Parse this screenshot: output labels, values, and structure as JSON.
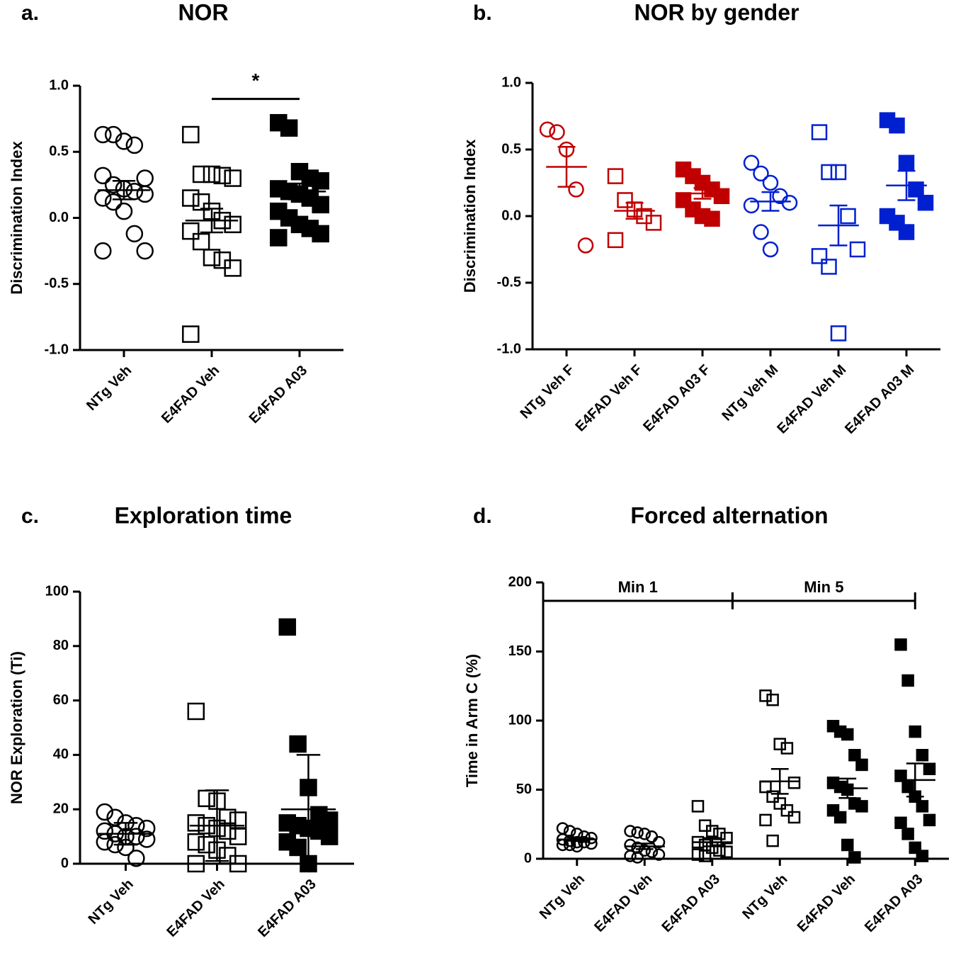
{
  "chart_data": [
    {
      "type": "scatter",
      "panel": "a.",
      "title": "NOR",
      "ylabel": "Discrimination Index",
      "categories": [
        "NTg Veh",
        "E4FAD Veh",
        "E4FAD A03"
      ],
      "markers": [
        {
          "shape": "circle",
          "filled": false,
          "color": "#000000"
        },
        {
          "shape": "square",
          "filled": false,
          "color": "#000000"
        },
        {
          "shape": "square",
          "filled": true,
          "color": "#000000"
        }
      ],
      "points": [
        [
          0.63,
          0.63,
          0.58,
          0.55,
          0.3,
          0.32,
          0.25,
          0.22,
          0.2,
          0.18,
          0.15,
          0.12,
          0.05,
          -0.12,
          -0.25,
          -0.25
        ],
        [
          0.63,
          0.33,
          0.33,
          0.32,
          0.3,
          0.15,
          0.12,
          0.05,
          -0.02,
          -0.05,
          -0.1,
          -0.18,
          -0.3,
          -0.32,
          -0.38,
          -0.88
        ],
        [
          0.72,
          0.68,
          0.35,
          0.3,
          0.28,
          0.22,
          0.2,
          0.18,
          0.15,
          0.1,
          0.05,
          0.0,
          -0.05,
          -0.08,
          -0.12,
          -0.15
        ]
      ],
      "means": [
        0.21,
        -0.02,
        0.2
      ],
      "errors": [
        0.07,
        0.09,
        0.06
      ],
      "significance": [
        {
          "label": "*",
          "between": [
            1,
            2
          ],
          "y": 0.9
        }
      ],
      "ylim": [
        -1,
        1
      ],
      "yticks": [
        {
          "value": -1,
          "label": "-1.0"
        },
        -0.5,
        {
          "value": 0,
          "label": "0.0"
        },
        0.5,
        {
          "value": 1,
          "label": "1.0"
        }
      ]
    },
    {
      "type": "scatter",
      "panel": "b.",
      "title": "NOR by gender",
      "ylabel": "Discrimination Index",
      "categories": [
        "NTg Veh F",
        "E4FAD Veh F",
        "E4FAD A03 F",
        "NTg Veh M",
        "E4FAD Veh M",
        "E4FAD A03 M"
      ],
      "markers": [
        {
          "shape": "circle",
          "filled": false,
          "color": "#c00000"
        },
        {
          "shape": "square",
          "filled": false,
          "color": "#c00000"
        },
        {
          "shape": "square",
          "filled": true,
          "color": "#c00000"
        },
        {
          "shape": "circle",
          "filled": false,
          "color": "#0020d0"
        },
        {
          "shape": "square",
          "filled": false,
          "color": "#0020d0"
        },
        {
          "shape": "square",
          "filled": true,
          "color": "#0020d0"
        }
      ],
      "points": [
        [
          0.65,
          0.63,
          0.5,
          0.2,
          -0.22
        ],
        [
          0.3,
          0.12,
          0.05,
          0.0,
          -0.05,
          -0.18
        ],
        [
          0.35,
          0.3,
          0.25,
          0.2,
          0.15,
          0.12,
          0.05,
          0.0,
          -0.02
        ],
        [
          0.4,
          0.32,
          0.25,
          0.15,
          0.1,
          0.08,
          -0.12,
          -0.25
        ],
        [
          0.63,
          0.33,
          0.33,
          0.0,
          -0.25,
          -0.3,
          -0.38,
          -0.88
        ],
        [
          0.72,
          0.68,
          0.4,
          0.2,
          0.1,
          0.0,
          -0.05,
          -0.12
        ]
      ],
      "means": [
        0.37,
        0.04,
        0.17,
        0.11,
        -0.07,
        0.23
      ],
      "errors": [
        0.15,
        0.06,
        0.04,
        0.07,
        0.15,
        0.11
      ],
      "ylim": [
        -1,
        1
      ],
      "yticks": [
        {
          "value": -1,
          "label": "-1.0"
        },
        -0.5,
        {
          "value": 0,
          "label": "0.0"
        },
        0.5,
        {
          "value": 1,
          "label": "1.0"
        }
      ]
    },
    {
      "type": "scatter",
      "panel": "c.",
      "title": "Exploration time",
      "ylabel": "NOR Exploration (Ti)",
      "categories": [
        "NTg Veh",
        "E4FAD Veh",
        "E4FAD A03"
      ],
      "markers": [
        {
          "shape": "circle",
          "filled": false,
          "color": "#000000"
        },
        {
          "shape": "square",
          "filled": false,
          "color": "#000000"
        },
        {
          "shape": "square",
          "filled": true,
          "color": "#000000"
        }
      ],
      "points": [
        [
          19,
          17,
          15,
          14,
          13,
          12,
          11,
          10,
          10,
          9,
          8,
          7,
          6,
          2
        ],
        [
          56,
          24,
          23,
          17,
          16,
          15,
          14,
          13,
          12,
          10,
          8,
          7,
          5,
          3,
          0,
          0
        ],
        [
          87,
          44,
          28,
          18,
          16,
          15,
          14,
          13,
          12,
          10,
          8,
          6,
          0
        ]
      ],
      "means": [
        11,
        14,
        20
      ],
      "errors": [
        4,
        13,
        20
      ],
      "ylim": [
        0,
        100
      ],
      "yticks": [
        0,
        20,
        40,
        60,
        80,
        100
      ]
    },
    {
      "type": "scatter",
      "panel": "d.",
      "title": "Forced alternation",
      "ylabel": "Time in Arm C (%)",
      "categories": [
        "NTg Veh",
        "E4FAD Veh",
        "E4FAD A03",
        "NTg Veh",
        "E4FAD Veh",
        "E4FAD A03"
      ],
      "markers": [
        {
          "shape": "circle",
          "filled": false,
          "color": "#000000"
        },
        {
          "shape": "circle",
          "filled": false,
          "color": "#000000"
        },
        {
          "shape": "square",
          "filled": false,
          "color": "#000000"
        },
        {
          "shape": "square",
          "filled": false,
          "color": "#000000"
        },
        {
          "shape": "square",
          "filled": true,
          "color": "#000000"
        },
        {
          "shape": "square",
          "filled": true,
          "color": "#000000"
        }
      ],
      "points": [
        [
          22,
          20,
          18,
          16,
          15,
          14,
          13,
          12,
          12,
          11,
          10,
          10,
          9
        ],
        [
          20,
          19,
          18,
          16,
          12,
          10,
          8,
          6,
          5,
          3,
          2,
          1
        ],
        [
          38,
          24,
          20,
          18,
          15,
          12,
          10,
          8,
          6,
          5,
          3,
          2
        ],
        [
          118,
          115,
          83,
          80,
          55,
          52,
          45,
          40,
          35,
          30,
          28,
          13
        ],
        [
          96,
          92,
          90,
          75,
          68,
          55,
          52,
          50,
          40,
          38,
          35,
          30,
          10,
          1
        ],
        [
          155,
          129,
          92,
          75,
          65,
          60,
          52,
          45,
          38,
          28,
          26,
          18,
          8,
          2
        ]
      ],
      "means": [
        14,
        9,
        12,
        56,
        51,
        57
      ],
      "errors": [
        1,
        2,
        3,
        9,
        7,
        12
      ],
      "category_groups": [
        {
          "label": "Min 1",
          "span": [
            0,
            2
          ]
        },
        {
          "label": "Min 5",
          "span": [
            3,
            5
          ]
        }
      ],
      "ylim": [
        0,
        200
      ],
      "yticks": [
        0,
        50,
        100,
        150,
        200
      ]
    }
  ]
}
